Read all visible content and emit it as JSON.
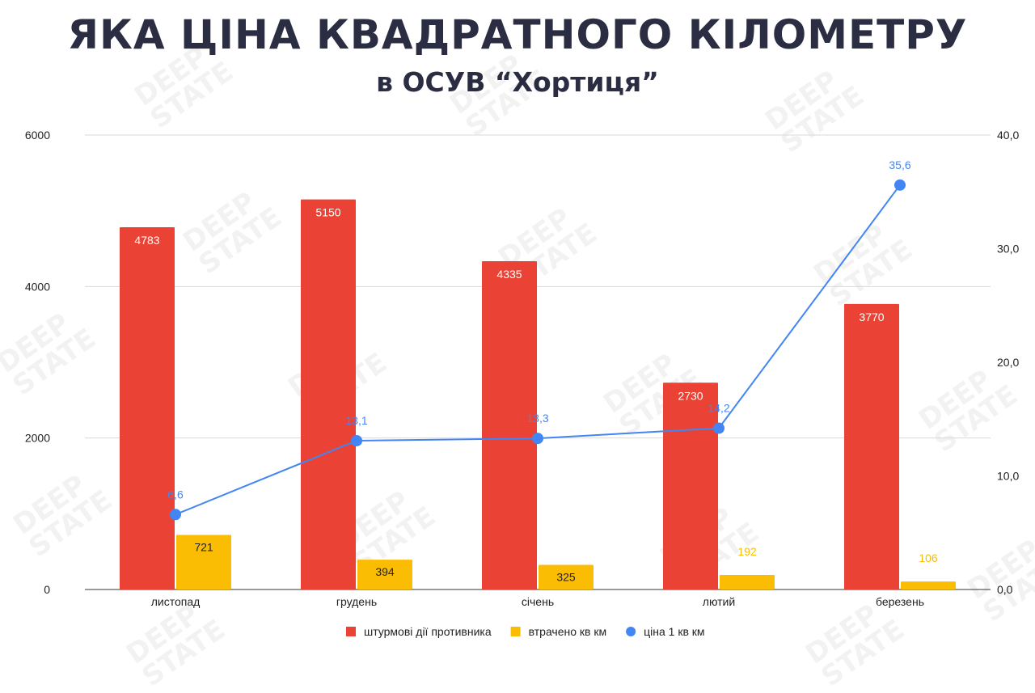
{
  "watermark": "DEEP\nSTATE",
  "chart_data": {
    "type": "bar",
    "title": "ЯКА ЦІНА КВАДРАТНОГО КІЛОМЕТРУ",
    "subtitle": "в ОСУВ “Хортиця”",
    "categories": [
      "листопад",
      "грудень",
      "січень",
      "лютий",
      "березень"
    ],
    "series": [
      {
        "name": "штурмові дії противника",
        "type": "bar",
        "axis": "left",
        "color": "#ea4335",
        "values": [
          4783,
          5150,
          4335,
          2730,
          3770
        ],
        "labels": [
          "4783",
          "5150",
          "4335",
          "2730",
          "3770"
        ]
      },
      {
        "name": "втрачено кв км",
        "type": "bar",
        "axis": "left",
        "color": "#fbbc04",
        "values": [
          721,
          394,
          325,
          192,
          106
        ],
        "labels": [
          "721",
          "394",
          "325",
          "192",
          "106"
        ]
      },
      {
        "name": "ціна 1 кв км",
        "type": "line",
        "axis": "right",
        "color": "#4285f4",
        "values": [
          6.6,
          13.1,
          13.3,
          14.2,
          35.6
        ],
        "labels": [
          "6,6",
          "13,1",
          "13,3",
          "14,2",
          "35,6"
        ]
      }
    ],
    "left_axis": {
      "ylim": [
        0,
        6000
      ],
      "ticks": [
        "0",
        "2000",
        "4000",
        "6000"
      ]
    },
    "right_axis": {
      "ylim": [
        0,
        40
      ],
      "ticks": [
        "0,0",
        "10,0",
        "20,0",
        "30,0",
        "40,0"
      ]
    },
    "grid": true,
    "legend": "bottom"
  }
}
